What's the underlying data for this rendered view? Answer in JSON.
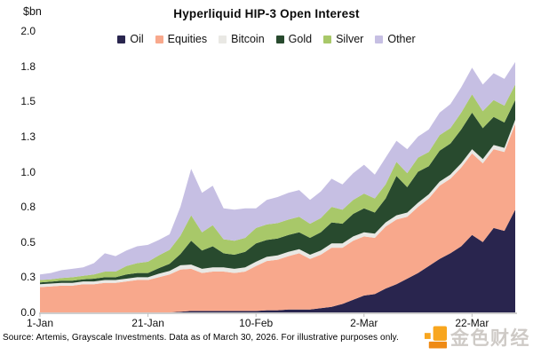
{
  "header": {
    "y_axis_unit": "$bn",
    "title": "Hyperliquid HIP-3 Open Interest"
  },
  "footer": {
    "source": "Source: Artemis, Grayscale Investments. Data as of March 30, 2026. For illustrative purposes only."
  },
  "watermark": {
    "text": "金色财经",
    "logo_color": "#F8A61E",
    "logo_color_dark": "#EF8A14"
  },
  "chart_data": {
    "type": "area",
    "stacked": true,
    "title": "Hyperliquid HIP-3 Open Interest",
    "ylabel": "$bn",
    "ylim": [
      0,
      2
    ],
    "grid": false,
    "legend_position": "top-center",
    "x_axis_note": "Daily dates Jan 1 - Mar 30, 2026, sampled every 2 days (45 points)",
    "x_ticks": [
      {
        "index": 0,
        "label": "1-Jan"
      },
      {
        "index": 10,
        "label": "21-Jan"
      },
      {
        "index": 20,
        "label": "10-Feb"
      },
      {
        "index": 30,
        "label": "2-Mar"
      },
      {
        "index": 40,
        "label": "22-Mar"
      }
    ],
    "y_ticks": [
      {
        "value": 0,
        "label": "0.0"
      },
      {
        "value": 0.25,
        "label": "0.3"
      },
      {
        "value": 0.5,
        "label": "0.5"
      },
      {
        "value": 0.75,
        "label": "0.8"
      },
      {
        "value": 1,
        "label": "1.0"
      },
      {
        "value": 1.25,
        "label": "1.3"
      },
      {
        "value": 1.5,
        "label": "1.5"
      },
      {
        "value": 1.75,
        "label": "1.8"
      },
      {
        "value": 2,
        "label": "2.0"
      }
    ],
    "series": [
      {
        "name": "Oil",
        "color": "#29254E",
        "values": [
          0,
          0,
          0,
          0,
          0,
          0,
          0,
          0,
          0,
          0,
          0,
          0,
          0,
          0.005,
          0.01,
          0.01,
          0.01,
          0.01,
          0.01,
          0.01,
          0.01,
          0.015,
          0.015,
          0.02,
          0.02,
          0.02,
          0.03,
          0.04,
          0.06,
          0.09,
          0.12,
          0.13,
          0.17,
          0.2,
          0.24,
          0.28,
          0.33,
          0.38,
          0.42,
          0.47,
          0.55,
          0.5,
          0.6,
          0.58,
          0.73
        ]
      },
      {
        "name": "Equities",
        "color": "#F8A88C",
        "values": [
          0.18,
          0.185,
          0.19,
          0.19,
          0.2,
          0.2,
          0.21,
          0.21,
          0.22,
          0.23,
          0.23,
          0.25,
          0.27,
          0.3,
          0.3,
          0.27,
          0.28,
          0.28,
          0.27,
          0.28,
          0.32,
          0.35,
          0.36,
          0.38,
          0.4,
          0.36,
          0.38,
          0.42,
          0.4,
          0.42,
          0.42,
          0.4,
          0.44,
          0.46,
          0.44,
          0.47,
          0.48,
          0.52,
          0.53,
          0.56,
          0.58,
          0.56,
          0.56,
          0.56,
          0.61
        ]
      },
      {
        "name": "Bitcoin",
        "color": "#E9E8E4",
        "values": [
          0.02,
          0.02,
          0.02,
          0.02,
          0.02,
          0.02,
          0.02,
          0.02,
          0.02,
          0.02,
          0.02,
          0.025,
          0.025,
          0.03,
          0.03,
          0.03,
          0.03,
          0.03,
          0.03,
          0.03,
          0.03,
          0.03,
          0.03,
          0.03,
          0.03,
          0.03,
          0.03,
          0.03,
          0.03,
          0.03,
          0.03,
          0.03,
          0.03,
          0.03,
          0.03,
          0.03,
          0.03,
          0.03,
          0.03,
          0.03,
          0.03,
          0.03,
          0.03,
          0.03,
          0.03
        ]
      },
      {
        "name": "Gold",
        "color": "#284A2E",
        "values": [
          0.013,
          0.013,
          0.015,
          0.015,
          0.015,
          0.02,
          0.02,
          0.02,
          0.03,
          0.03,
          0.03,
          0.04,
          0.05,
          0.08,
          0.17,
          0.13,
          0.15,
          0.1,
          0.1,
          0.11,
          0.13,
          0.12,
          0.12,
          0.12,
          0.12,
          0.12,
          0.13,
          0.15,
          0.14,
          0.16,
          0.17,
          0.15,
          0.17,
          0.28,
          0.18,
          0.22,
          0.2,
          0.22,
          0.22,
          0.24,
          0.26,
          0.22,
          0.2,
          0.18,
          0.14
        ]
      },
      {
        "name": "Silver",
        "color": "#A8C869",
        "values": [
          0.017,
          0.017,
          0.02,
          0.025,
          0.025,
          0.03,
          0.04,
          0.04,
          0.06,
          0.07,
          0.08,
          0.09,
          0.1,
          0.13,
          0.18,
          0.13,
          0.15,
          0.1,
          0.1,
          0.1,
          0.11,
          0.11,
          0.11,
          0.11,
          0.11,
          0.1,
          0.1,
          0.11,
          0.1,
          0.1,
          0.105,
          0.1,
          0.1,
          0.1,
          0.1,
          0.1,
          0.1,
          0.11,
          0.11,
          0.12,
          0.13,
          0.12,
          0.12,
          0.12,
          0.11
        ]
      },
      {
        "name": "Other",
        "color": "#C6BFE3",
        "values": [
          0.04,
          0.045,
          0.055,
          0.06,
          0.06,
          0.08,
          0.13,
          0.11,
          0.11,
          0.12,
          0.12,
          0.11,
          0.11,
          0.205,
          0.33,
          0.28,
          0.28,
          0.22,
          0.22,
          0.21,
          0.14,
          0.175,
          0.185,
          0.19,
          0.19,
          0.17,
          0.19,
          0.2,
          0.18,
          0.19,
          0.205,
          0.17,
          0.19,
          0.15,
          0.17,
          0.15,
          0.16,
          0.16,
          0.17,
          0.18,
          0.19,
          0.19,
          0.19,
          0.19,
          0.16
        ]
      }
    ]
  },
  "axis_style": {
    "axis_line_color": "#BDBDBD"
  }
}
